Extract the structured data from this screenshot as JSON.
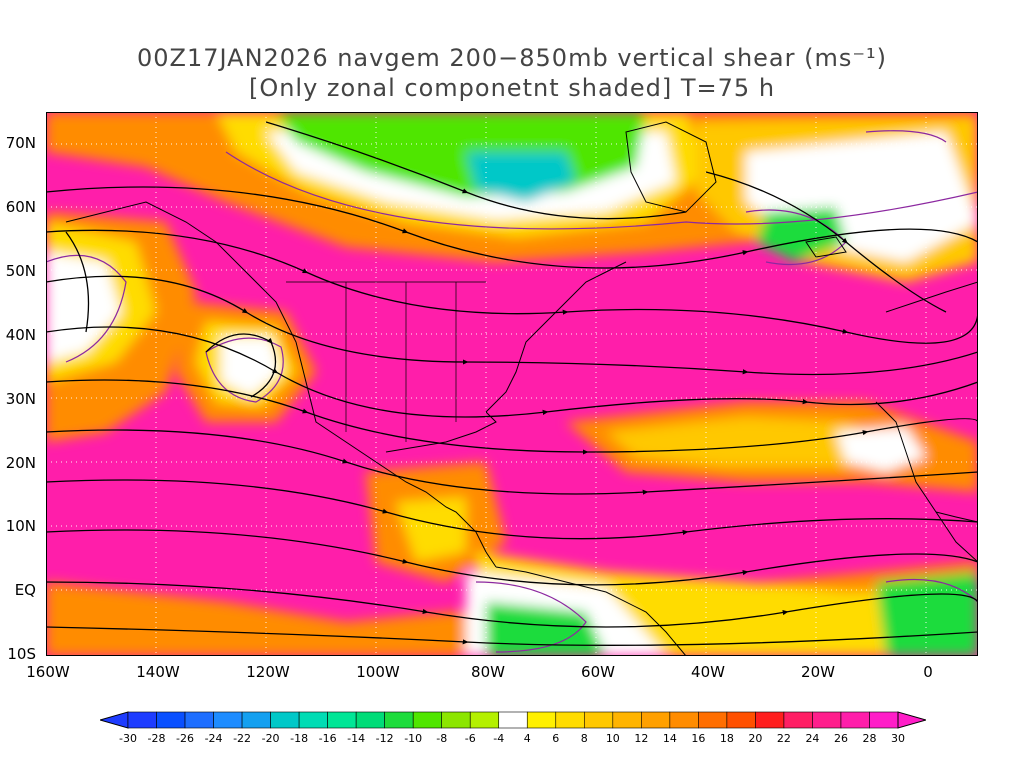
{
  "title": {
    "line1": "00Z17JAN2026 navgem 200−850mb vertical shear (ms⁻¹)",
    "line2": "[Only zonal componetnt shaded] T=75 h"
  },
  "lat_labels": [
    "70N",
    "60N",
    "50N",
    "40N",
    "30N",
    "20N",
    "10N",
    "EQ",
    "10S"
  ],
  "lon_labels": [
    "160W",
    "140W",
    "120W",
    "100W",
    "80W",
    "60W",
    "40W",
    "20W",
    "0"
  ],
  "colorbar": {
    "ticks": [
      "-30",
      "-28",
      "-26",
      "-24",
      "-22",
      "-20",
      "-18",
      "-16",
      "-14",
      "-12",
      "-10",
      "-8",
      "-6",
      "-4",
      "4",
      "6",
      "8",
      "10",
      "12",
      "14",
      "16",
      "18",
      "20",
      "22",
      "24",
      "26",
      "28",
      "30"
    ],
    "colors": [
      "#1e3cff",
      "#0a50ff",
      "#1e6eff",
      "#1e8cff",
      "#14a0f0",
      "#00c8c8",
      "#00dcb4",
      "#00e696",
      "#00dc78",
      "#1edc3c",
      "#50e600",
      "#8ce600",
      "#b4f000",
      "#ffffff",
      "#fff000",
      "#ffdc00",
      "#ffc800",
      "#ffb400",
      "#ffa000",
      "#ff8c00",
      "#ff6e00",
      "#ff5000",
      "#ff1e1e",
      "#ff1e64",
      "#ff1e8c",
      "#ff1eaa",
      "#ff1ec8"
    ]
  },
  "colors": {
    "title": "#444444",
    "shade_max": "#ff1eaa",
    "grid": "#ffffff",
    "coast": "#000000",
    "contour": "#8c28a0"
  }
}
